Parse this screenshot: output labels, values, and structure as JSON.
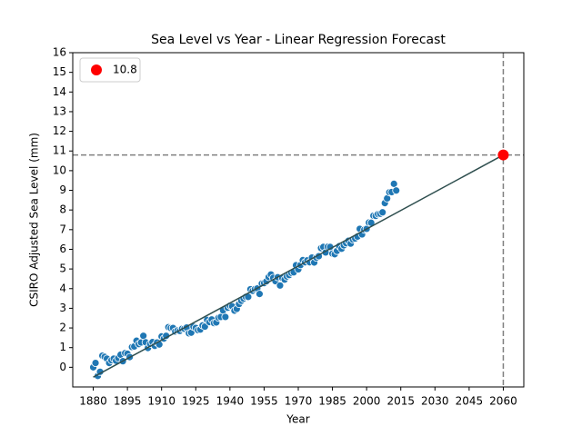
{
  "chart_data": {
    "type": "scatter",
    "title": "Sea Level vs Year - Linear Regression Forecast",
    "xlabel": "Year",
    "ylabel": "CSIRO Adjusted Sea Level (mm)",
    "x": [
      1880,
      1881,
      1882,
      1883,
      1884,
      1885,
      1886,
      1887,
      1888,
      1889,
      1890,
      1891,
      1892,
      1893,
      1894,
      1895,
      1896,
      1897,
      1898,
      1899,
      1900,
      1901,
      1902,
      1903,
      1904,
      1905,
      1906,
      1907,
      1908,
      1909,
      1910,
      1911,
      1912,
      1913,
      1914,
      1915,
      1916,
      1917,
      1918,
      1919,
      1920,
      1921,
      1922,
      1923,
      1924,
      1925,
      1926,
      1927,
      1928,
      1929,
      1930,
      1931,
      1932,
      1933,
      1934,
      1935,
      1936,
      1937,
      1938,
      1939,
      1940,
      1941,
      1942,
      1943,
      1944,
      1945,
      1946,
      1947,
      1948,
      1949,
      1950,
      1951,
      1952,
      1953,
      1954,
      1955,
      1956,
      1957,
      1958,
      1959,
      1960,
      1961,
      1962,
      1963,
      1964,
      1965,
      1966,
      1967,
      1968,
      1969,
      1970,
      1971,
      1972,
      1973,
      1974,
      1975,
      1976,
      1977,
      1978,
      1979,
      1980,
      1981,
      1982,
      1983,
      1984,
      1985,
      1986,
      1987,
      1988,
      1989,
      1990,
      1991,
      1992,
      1993,
      1994,
      1995,
      1996,
      1997,
      1998,
      1999,
      2000,
      2001,
      2002,
      2003,
      2004,
      2005,
      2006,
      2007,
      2008,
      2009,
      2010,
      2011,
      2012,
      2013
    ],
    "values": [
      0.0,
      0.22,
      -0.44,
      -0.23,
      0.59,
      0.53,
      0.44,
      0.22,
      0.36,
      0.44,
      0.33,
      0.47,
      0.64,
      0.31,
      0.72,
      0.69,
      0.52,
      1.03,
      1.06,
      1.35,
      1.18,
      1.26,
      1.6,
      1.27,
      0.98,
      1.19,
      1.28,
      1.09,
      1.26,
      1.16,
      1.57,
      1.46,
      1.6,
      2.04,
      2.0,
      2.0,
      1.82,
      1.87,
      1.85,
      1.96,
      1.96,
      2.02,
      1.73,
      1.76,
      2.06,
      2.0,
      1.89,
      1.92,
      2.13,
      2.07,
      2.41,
      2.3,
      2.43,
      2.25,
      2.28,
      2.52,
      2.56,
      2.89,
      2.56,
      3.03,
      3.13,
      3.1,
      2.88,
      2.97,
      3.22,
      3.38,
      3.49,
      3.58,
      3.58,
      3.97,
      3.89,
      3.98,
      4.01,
      3.73,
      4.26,
      4.28,
      4.37,
      4.59,
      4.72,
      4.55,
      4.38,
      4.58,
      4.16,
      4.54,
      4.46,
      4.62,
      4.69,
      4.8,
      4.83,
      5.19,
      4.98,
      5.2,
      5.45,
      5.34,
      5.44,
      5.34,
      5.58,
      5.33,
      5.57,
      5.65,
      6.06,
      6.12,
      5.84,
      6.13,
      6.12,
      5.78,
      5.75,
      5.92,
      6.16,
      6.03,
      6.2,
      6.31,
      6.43,
      6.29,
      6.5,
      6.55,
      6.65,
      7.04,
      6.76,
      7.0,
      7.04,
      7.36,
      7.35,
      7.71,
      7.7,
      7.79,
      7.81,
      7.88,
      8.35,
      8.59,
      8.9,
      8.91,
      9.33,
      8.99
    ],
    "color": "#1f77b4",
    "regression": {
      "x": [
        1880,
        2060
      ],
      "values": [
        -0.5,
        10.8
      ],
      "color": "#2f4f4f"
    },
    "forecast": {
      "label": "10.8",
      "x": 2060,
      "value": 10.8,
      "color": "#ff0000"
    },
    "legend": "upper left",
    "xlim": [
      1871,
      2069
    ],
    "ylim": [
      -1.0,
      16
    ],
    "xticks": [
      1880,
      1895,
      1910,
      1925,
      1940,
      1955,
      1970,
      1985,
      2000,
      2015,
      2030,
      2045,
      2060
    ],
    "yticks": [
      0,
      1,
      2,
      3,
      4,
      5,
      6,
      7,
      8,
      9,
      10,
      11,
      12,
      13,
      14,
      15,
      16
    ]
  }
}
